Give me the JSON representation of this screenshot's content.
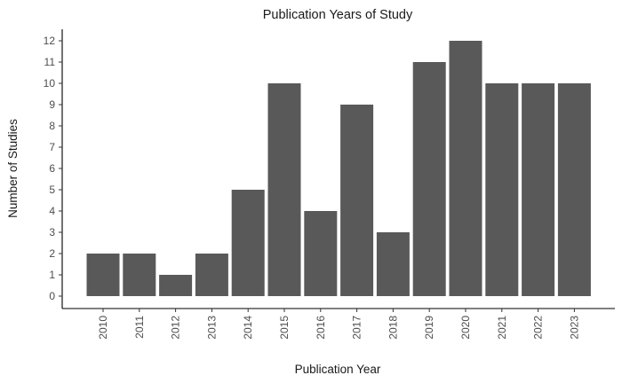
{
  "chart_data": {
    "type": "bar",
    "title": "Publication Years of Study",
    "xlabel": "Publication Year",
    "ylabel": "Number of Studies",
    "categories": [
      "2010",
      "2011",
      "2012",
      "2013",
      "2014",
      "2015",
      "2016",
      "2017",
      "2018",
      "2019",
      "2020",
      "2021",
      "2022",
      "2023"
    ],
    "values": [
      2,
      2,
      1,
      2,
      5,
      10,
      4,
      9,
      3,
      11,
      12,
      10,
      10,
      10
    ],
    "ylim": [
      0,
      12
    ],
    "yticks": [
      0,
      1,
      2,
      3,
      4,
      5,
      6,
      7,
      8,
      9,
      10,
      11,
      12
    ],
    "grid": false,
    "legend": "none",
    "bar_color": "#595959"
  }
}
